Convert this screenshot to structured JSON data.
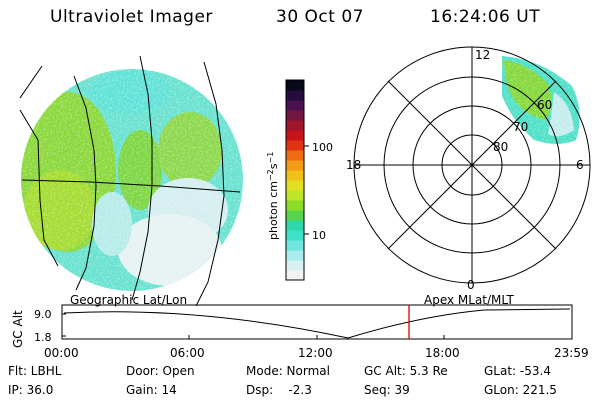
{
  "header": {
    "instrument": "Ultraviolet Imager",
    "date": "30 Oct 07",
    "time": "16:24:06 UT"
  },
  "colorbar": {
    "unit_base": "photon cm",
    "unit_exp1": "−2",
    "unit_mid": "s",
    "unit_exp2": "−1",
    "ticks": [
      "100",
      "10"
    ],
    "colors": [
      "#f2f2f2",
      "#d8f0f2",
      "#a8ecee",
      "#6fe6e0",
      "#3fe0c8",
      "#2ed8a8",
      "#58d44a",
      "#8cdc28",
      "#c0e428",
      "#e0e020",
      "#f0c018",
      "#f49a14",
      "#f06a10",
      "#e03410",
      "#c81418",
      "#a0142c",
      "#741440",
      "#4a1050",
      "#240c3c",
      "#080818"
    ]
  },
  "polar": {
    "hour_labels": [
      "12",
      "18",
      "6",
      "0"
    ],
    "lat_labels": [
      "80",
      "70",
      "60"
    ]
  },
  "timeline": {
    "left_title": "Geographic Lat/Lon",
    "right_title": "Apex MLat/MLT",
    "axis_label": "GC Alt",
    "y_ticks": [
      "9.0",
      "1.8"
    ],
    "x_ticks": [
      "00:00",
      "06:00",
      "12:00",
      "18:00",
      "23:59"
    ],
    "marker_color": "#e01010"
  },
  "meta": {
    "flt": "Flt: LBHL",
    "ip": "IP: 36.0",
    "door": "Door: Open",
    "gain": "Gain: 14",
    "mode": "Mode: Normal",
    "dsp": "Dsp:    -2.3",
    "gcalt": "GC Alt: 5.3 Re",
    "seq": "Seq: 39",
    "glat": "GLat: -53.4",
    "glon": "GLon: 221.5"
  }
}
